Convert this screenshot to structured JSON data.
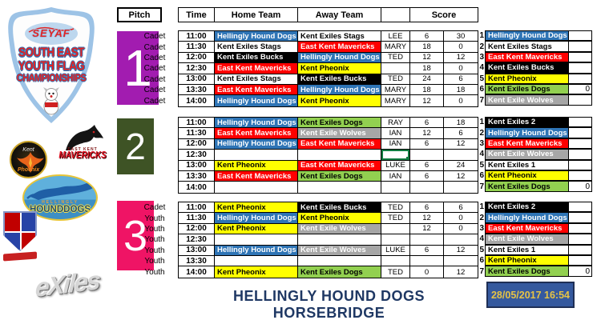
{
  "team_colors": {
    "Hellingly Hound Dogs": {
      "bg": "#2E74B5",
      "fg": "#FFFFFF"
    },
    "Kent Exiles Stags": {
      "bg": "#FFFFFF",
      "fg": "#000000"
    },
    "East Kent Mavericks": {
      "bg": "#FF0000",
      "fg": "#FFFFFF"
    },
    "Kent Exiles Bucks": {
      "bg": "#000000",
      "fg": "#FFFFFF"
    },
    "Kent Pheonix": {
      "bg": "#FFFF00",
      "fg": "#000000"
    },
    "Kent Exiles Dogs": {
      "bg": "#92D050",
      "fg": "#000000"
    },
    "Kent Exile Wolves": {
      "bg": "#A6A6A6",
      "fg": "#FFFFFF"
    },
    "Kent Exiles 2": {
      "bg": "#000000",
      "fg": "#FFFFFF"
    },
    "Kent Exiles 1": {
      "bg": "#FFFFFF",
      "fg": "#000000"
    }
  },
  "schedule_header": {
    "pitch": "Pitch",
    "time": "Time",
    "home": "Home Team",
    "away": "Away Team",
    "referee": "",
    "score": "Score"
  },
  "pitches": [
    {
      "number": "1",
      "box_color": "#A21CB0",
      "rows": [
        {
          "category": "Cadet",
          "time": "11:00",
          "home": "Hellingly Hound Dogs",
          "away": "Kent Exiles Stags",
          "ref": "LEE",
          "home_score": "6",
          "away_score": "30"
        },
        {
          "category": "Cadet",
          "time": "11:30",
          "home": "Kent Exiles Stags",
          "away": "East Kent Mavericks",
          "ref": "MARY",
          "home_score": "18",
          "away_score": "0"
        },
        {
          "category": "Cadet",
          "time": "12:00",
          "home": "Kent Exiles Bucks",
          "away": "Hellingly Hound Dogs",
          "ref": "TED",
          "home_score": "12",
          "away_score": "12"
        },
        {
          "category": "Cadet",
          "time": "12:30",
          "home": "East Kent Mavericks",
          "away": "Kent Pheonix",
          "ref": "",
          "home_score": "18",
          "away_score": "0"
        },
        {
          "category": "Cadet",
          "time": "13:00",
          "home": "Kent Exiles Stags",
          "away": "Kent Exiles Bucks",
          "ref": "TED",
          "home_score": "24",
          "away_score": "6"
        },
        {
          "category": "Cadet",
          "time": "13:30",
          "home": "East Kent Mavericks",
          "away": "Hellingly Hound Dogs",
          "ref": "MARY",
          "home_score": "18",
          "away_score": "18"
        },
        {
          "category": "Cadet",
          "time": "14:00",
          "home": "Hellingly Hound Dogs",
          "away": "Kent Pheonix",
          "ref": "MARY",
          "home_score": "12",
          "away_score": "0"
        }
      ]
    },
    {
      "number": "2",
      "box_color": "#3E5325",
      "rows": [
        {
          "category": "",
          "time": "11:00",
          "home": "Hellingly Hound Dogs",
          "away": "Kent Exiles Dogs",
          "ref": "RAY",
          "home_score": "6",
          "away_score": "18"
        },
        {
          "category": "",
          "time": "11:30",
          "home": "East Kent Mavericks",
          "away": "Kent Exile Wolves",
          "ref": "IAN",
          "home_score": "12",
          "away_score": "6"
        },
        {
          "category": "",
          "time": "12:00",
          "home": "Hellingly Hound Dogs",
          "away": "East Kent Mavericks",
          "ref": "IAN",
          "home_score": "6",
          "away_score": "12"
        },
        {
          "category": "",
          "time": "12:30",
          "home": "",
          "away": "",
          "ref": "",
          "home_score": "",
          "away_score": "",
          "selected": true
        },
        {
          "category": "",
          "time": "13:00",
          "home": "Kent Pheonix",
          "away": "East Kent Mavericks",
          "ref": "LUKE",
          "home_score": "6",
          "away_score": "24"
        },
        {
          "category": "",
          "time": "13:30",
          "home": "East Kent Mavericks",
          "away": "Kent Exiles Dogs",
          "ref": "IAN",
          "home_score": "6",
          "away_score": "12"
        },
        {
          "category": "",
          "time": "14:00",
          "home": "",
          "away": "",
          "ref": "",
          "home_score": "",
          "away_score": ""
        }
      ]
    },
    {
      "number": "3",
      "box_color": "#EF1465",
      "rows": [
        {
          "category": "Cadet",
          "time": "11:00",
          "home": "Kent Pheonix",
          "away": "Kent Exiles Bucks",
          "ref": "TED",
          "home_score": "6",
          "away_score": "6"
        },
        {
          "category": "Youth",
          "time": "11:30",
          "home": "Hellingly Hound Dogs",
          "away": "Kent Pheonix",
          "ref": "TED",
          "home_score": "12",
          "away_score": "0"
        },
        {
          "category": "Youth",
          "time": "12:00",
          "home": "Kent Pheonix",
          "away": "Kent Exile Wolves",
          "ref": "",
          "home_score": "12",
          "away_score": "0"
        },
        {
          "category": "Youth",
          "time": "12:30",
          "home": "",
          "away": "",
          "ref": "",
          "home_score": "",
          "away_score": ""
        },
        {
          "category": "Youth",
          "time": "13:00",
          "home": "Hellingly Hound Dogs",
          "away": "Kent Exile Wolves",
          "ref": "LUKE",
          "home_score": "6",
          "away_score": "12"
        },
        {
          "category": "Youth",
          "time": "13:30",
          "home": "",
          "away": "",
          "ref": "",
          "home_score": "",
          "away_score": ""
        },
        {
          "category": "Youth",
          "time": "14:00",
          "home": "Kent Pheonix",
          "away": "Kent Exiles Dogs",
          "ref": "TED",
          "home_score": "0",
          "away_score": "12"
        }
      ]
    }
  ],
  "standings": [
    {
      "rows": [
        {
          "rank": "1",
          "team": "Hellingly Hound Dogs",
          "value": ""
        },
        {
          "rank": "2",
          "team": "Kent Exiles Stags",
          "value": ""
        },
        {
          "rank": "3",
          "team": "East Kent Mavericks",
          "value": ""
        },
        {
          "rank": "4",
          "team": "Kent Exiles Bucks",
          "value": ""
        },
        {
          "rank": "5",
          "team": "Kent Pheonix",
          "value": ""
        },
        {
          "rank": "6",
          "team": "Kent Exiles Dogs",
          "value": "0"
        },
        {
          "rank": "7",
          "team": "Kent Exile Wolves",
          "value": ""
        }
      ]
    },
    {
      "rows": [
        {
          "rank": "1",
          "team": "Kent Exiles 2",
          "value": ""
        },
        {
          "rank": "2",
          "team": "Hellingly Hound Dogs",
          "value": ""
        },
        {
          "rank": "3",
          "team": "East Kent Mavericks",
          "value": ""
        },
        {
          "rank": "4",
          "team": "Kent Exile Wolves",
          "value": ""
        },
        {
          "rank": "5",
          "team": "Kent Exiles 1",
          "value": ""
        },
        {
          "rank": "6",
          "team": "Kent Pheonix",
          "value": ""
        },
        {
          "rank": "7",
          "team": "Kent Exiles Dogs",
          "value": "0"
        }
      ]
    },
    {
      "rows": [
        {
          "rank": "1",
          "team": "Kent Exiles 2",
          "value": ""
        },
        {
          "rank": "2",
          "team": "Hellingly Hound Dogs",
          "value": ""
        },
        {
          "rank": "3",
          "team": "East Kent Mavericks",
          "value": ""
        },
        {
          "rank": "4",
          "team": "Kent Exile Wolves",
          "value": ""
        },
        {
          "rank": "5",
          "team": "Kent Exiles 1",
          "value": ""
        },
        {
          "rank": "6",
          "team": "Kent Pheonix",
          "value": ""
        },
        {
          "rank": "7",
          "team": "Kent Exiles Dogs",
          "value": "0"
        }
      ]
    }
  ],
  "logos": {
    "seyaf": {
      "acronym": "SEYAF",
      "line1": "SOUTH EAST",
      "line2": "YOUTH FLAG",
      "line3": "CHAMPIONSHIPS"
    },
    "phoenix": {
      "top": "Kent",
      "bottom": "Phoenix"
    },
    "mavericks": {
      "small": "EAST KENT",
      "name": "MAVERICKS"
    },
    "hounddogs": {
      "small": "HELLINGLY",
      "name": "HOUNDDOGS"
    },
    "exiles": {
      "name": "eXiles"
    }
  },
  "footer": {
    "title": "HELLINGLY HOUND DOGS HORSEBRIDGE",
    "datetime": "28/05/2017 16:54"
  }
}
